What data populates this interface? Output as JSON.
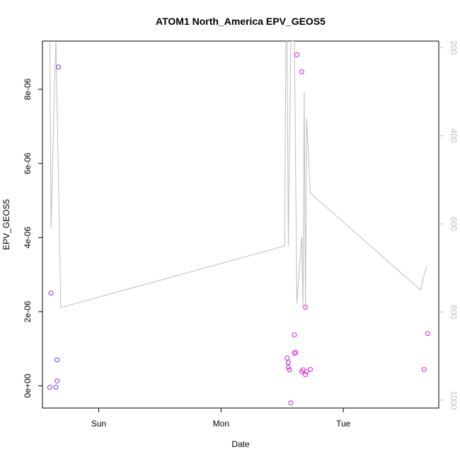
{
  "chart_data": {
    "type": "scatter",
    "title": "ATOM1 North_America EPV_GEOS5",
    "xlabel": "Date",
    "ylabel": "EPV_GEOS5",
    "x_ticks": [
      {
        "label": "Sun",
        "value": 0.26
      },
      {
        "label": "Mon",
        "value": 1.26
      },
      {
        "label": "Tue",
        "value": 2.26
      }
    ],
    "xlim": [
      -0.2,
      3.04
    ],
    "ylim": [
      -6e-07,
      9.3e-06
    ],
    "y_ticks": [
      {
        "label": "0e+00",
        "value": 0
      },
      {
        "label": "2e-06",
        "value": 2e-06
      },
      {
        "label": "4e-06",
        "value": 4e-06
      },
      {
        "label": "6e-06",
        "value": 6e-06
      },
      {
        "label": "8e-06",
        "value": 8e-06
      }
    ],
    "right_axis": {
      "lim": [
        1018,
        185
      ],
      "ticks": [
        {
          "label": "200",
          "value": 200
        },
        {
          "label": "400",
          "value": 400
        },
        {
          "label": "600",
          "value": 600
        },
        {
          "label": "800",
          "value": 800
        },
        {
          "label": "1000",
          "value": 1000
        }
      ],
      "color": "#bdbdbd"
    },
    "points": [
      {
        "x": -0.14,
        "y": -4e-08,
        "color": "#8a2be2"
      },
      {
        "x": -0.13,
        "y": 2.5e-06,
        "color": "#8a2be2"
      },
      {
        "x": -0.09,
        "y": -4e-08,
        "color": "#8a2be2"
      },
      {
        "x": -0.08,
        "y": 1.3e-07,
        "color": "#8a2be2"
      },
      {
        "x": -0.08,
        "y": 7e-07,
        "color": "#8a2be2"
      },
      {
        "x": -0.07,
        "y": 8.6e-06,
        "color": "#8a2be2"
      },
      {
        "x": 1.8,
        "y": 7.5e-07,
        "color": "#c026d3"
      },
      {
        "x": 1.81,
        "y": 5e-07,
        "color": "#c026d3"
      },
      {
        "x": 1.81,
        "y": 6.3e-07,
        "color": "#c026d3"
      },
      {
        "x": 1.82,
        "y": 4.3e-07,
        "color": "#c026d3"
      },
      {
        "x": 1.83,
        "y": -4.6e-07,
        "color": "#c026d3"
      },
      {
        "x": 1.86,
        "y": 8.8e-07,
        "color": "#e11de1"
      },
      {
        "x": 1.86,
        "y": 1.37e-06,
        "color": "#e11de1"
      },
      {
        "x": 1.87,
        "y": 9e-07,
        "color": "#e11de1"
      },
      {
        "x": 1.88,
        "y": 8.93e-06,
        "color": "#e11de1"
      },
      {
        "x": 1.92,
        "y": 3.8e-07,
        "color": "#e11de1"
      },
      {
        "x": 1.92,
        "y": 8.47e-06,
        "color": "#e11de1"
      },
      {
        "x": 1.93,
        "y": 4.3e-07,
        "color": "#e11de1"
      },
      {
        "x": 1.95,
        "y": 3e-07,
        "color": "#e11de1"
      },
      {
        "x": 1.95,
        "y": 2.12e-06,
        "color": "#e11de1"
      },
      {
        "x": 1.96,
        "y": 3.8e-07,
        "color": "#e11de1"
      },
      {
        "x": 1.99,
        "y": 4.4e-07,
        "color": "#e11de1"
      },
      {
        "x": 2.92,
        "y": 4.4e-07,
        "color": "#e11de1"
      },
      {
        "x": 2.95,
        "y": 1.41e-06,
        "color": "#e11de1"
      }
    ],
    "pressure_series": {
      "color": "#bdbdbd",
      "points": [
        {
          "x": -0.14,
          "y": 185
        },
        {
          "x": -0.13,
          "y": 610
        },
        {
          "x": -0.1,
          "y": 270
        },
        {
          "x": -0.09,
          "y": 185
        },
        {
          "x": -0.05,
          "y": 790
        },
        {
          "x": 1.78,
          "y": 650
        },
        {
          "x": 1.79,
          "y": 185
        },
        {
          "x": 1.8,
          "y": 185
        },
        {
          "x": 1.81,
          "y": 650
        },
        {
          "x": 1.83,
          "y": 185
        },
        {
          "x": 1.86,
          "y": 185
        },
        {
          "x": 1.88,
          "y": 780
        },
        {
          "x": 1.92,
          "y": 630
        },
        {
          "x": 1.93,
          "y": 785
        },
        {
          "x": 1.94,
          "y": 300
        },
        {
          "x": 1.95,
          "y": 795
        },
        {
          "x": 1.96,
          "y": 360
        },
        {
          "x": 1.99,
          "y": 530
        },
        {
          "x": 2.89,
          "y": 750
        },
        {
          "x": 2.94,
          "y": 695
        }
      ]
    },
    "grid": false,
    "legend": "none"
  }
}
